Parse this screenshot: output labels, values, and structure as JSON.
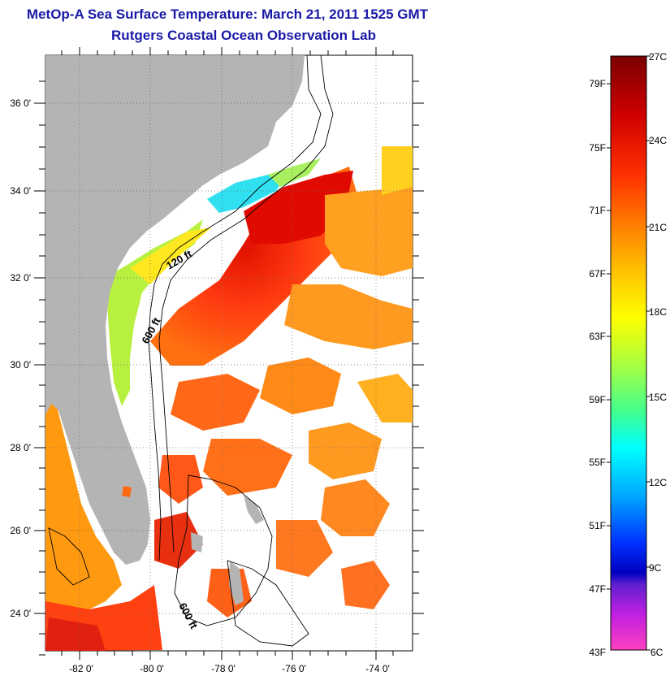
{
  "title": {
    "line1": "MetOp-A Sea Surface Temperature:  March 21, 2011 1525 GMT",
    "line2": "Rutgers Coastal Ocean Observation Lab"
  },
  "map": {
    "lat_ticks": [
      "24 0'",
      "26 0'",
      "28 0'",
      "30 0'",
      "32 0'",
      "34 0'",
      "36 0'"
    ],
    "lon_ticks": [
      "-82 0'",
      "-80 0'",
      "-78 0'",
      "-76 0'",
      "-74 0'"
    ],
    "contour_labels": [
      "120 ft",
      "600 ft",
      "600 ft"
    ],
    "land_color": "#b4b4b4"
  },
  "colorbar": {
    "fahrenheit": [
      "79F",
      "75F",
      "71F",
      "67F",
      "63F",
      "59F",
      "55F",
      "51F",
      "47F",
      "43F"
    ],
    "celsius": [
      "27C",
      "24C",
      "21C",
      "18C",
      "15C",
      "12C",
      "9C",
      "6C"
    ]
  }
}
